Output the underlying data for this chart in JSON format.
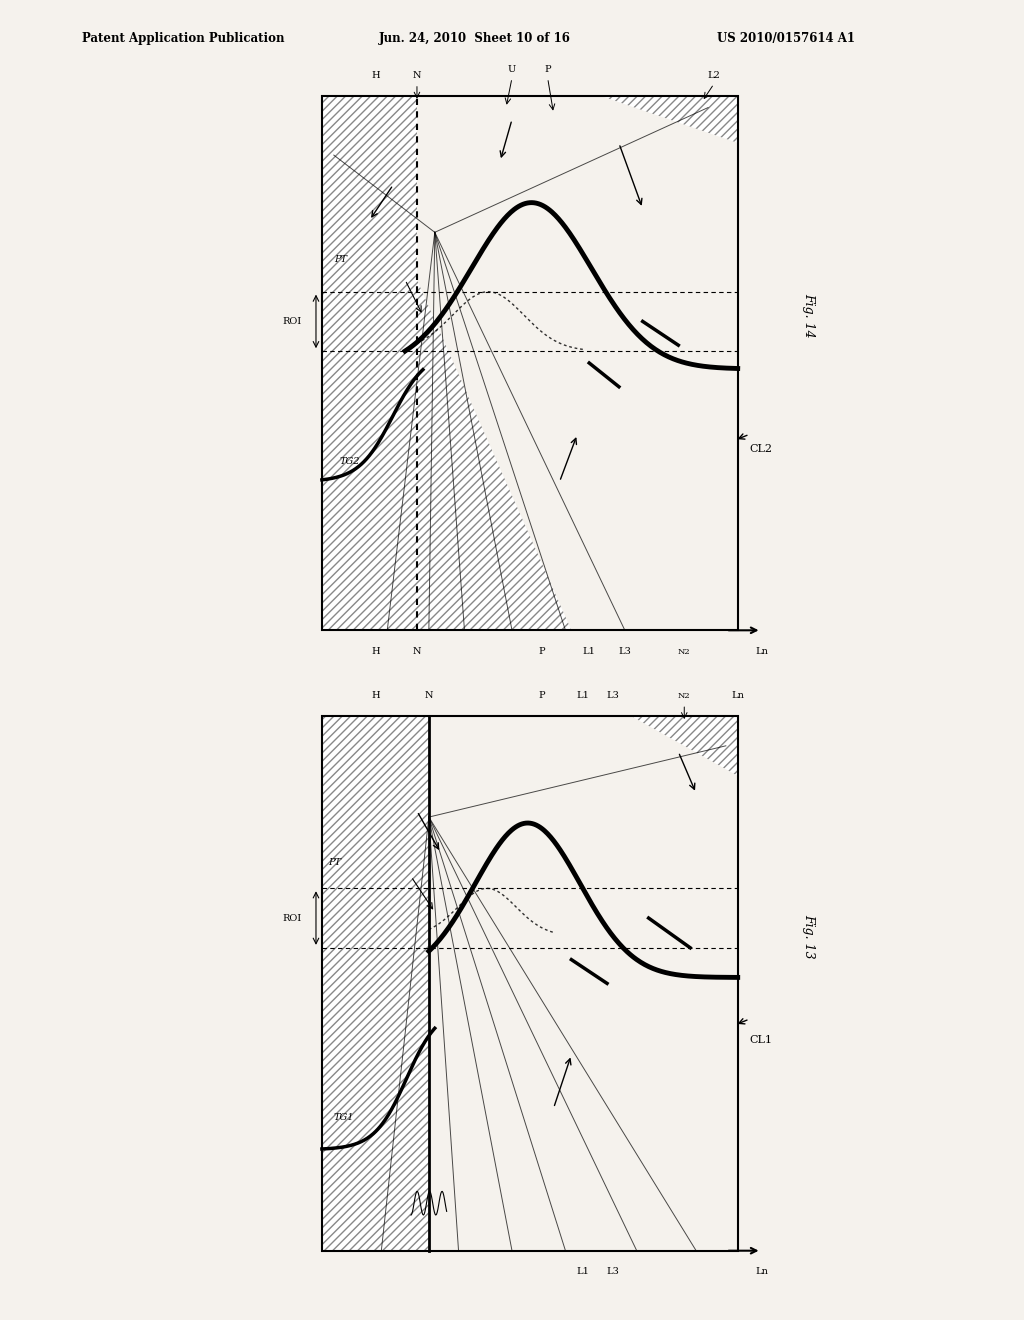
{
  "header_left": "Patent Application Publication",
  "header_mid": "Jun. 24, 2010  Sheet 10 of 16",
  "header_right": "US 2010/0157614 A1",
  "bg_color": "#f0ede8",
  "fig14": {
    "label": "Fig. 14",
    "top_labels": [
      "H",
      "N",
      "U",
      "P",
      "L2"
    ],
    "bottom_labels": [
      "H",
      "N",
      "P",
      "L1",
      "L3",
      "N2",
      "Ln"
    ],
    "cl_label": "CL2",
    "tg_label": "TG2",
    "pt_label": "PT",
    "vert_line": "dashed"
  },
  "fig13": {
    "label": "Fig. 13",
    "top_labels": [
      "H",
      "N",
      "P",
      "L1",
      "L3",
      "N2",
      "Ln"
    ],
    "bottom_labels": [
      "L1",
      "L3",
      "Ln"
    ],
    "cl_label": "CL1",
    "tg_label": "TG1",
    "pt_label": "PT",
    "vert_line": "solid"
  }
}
